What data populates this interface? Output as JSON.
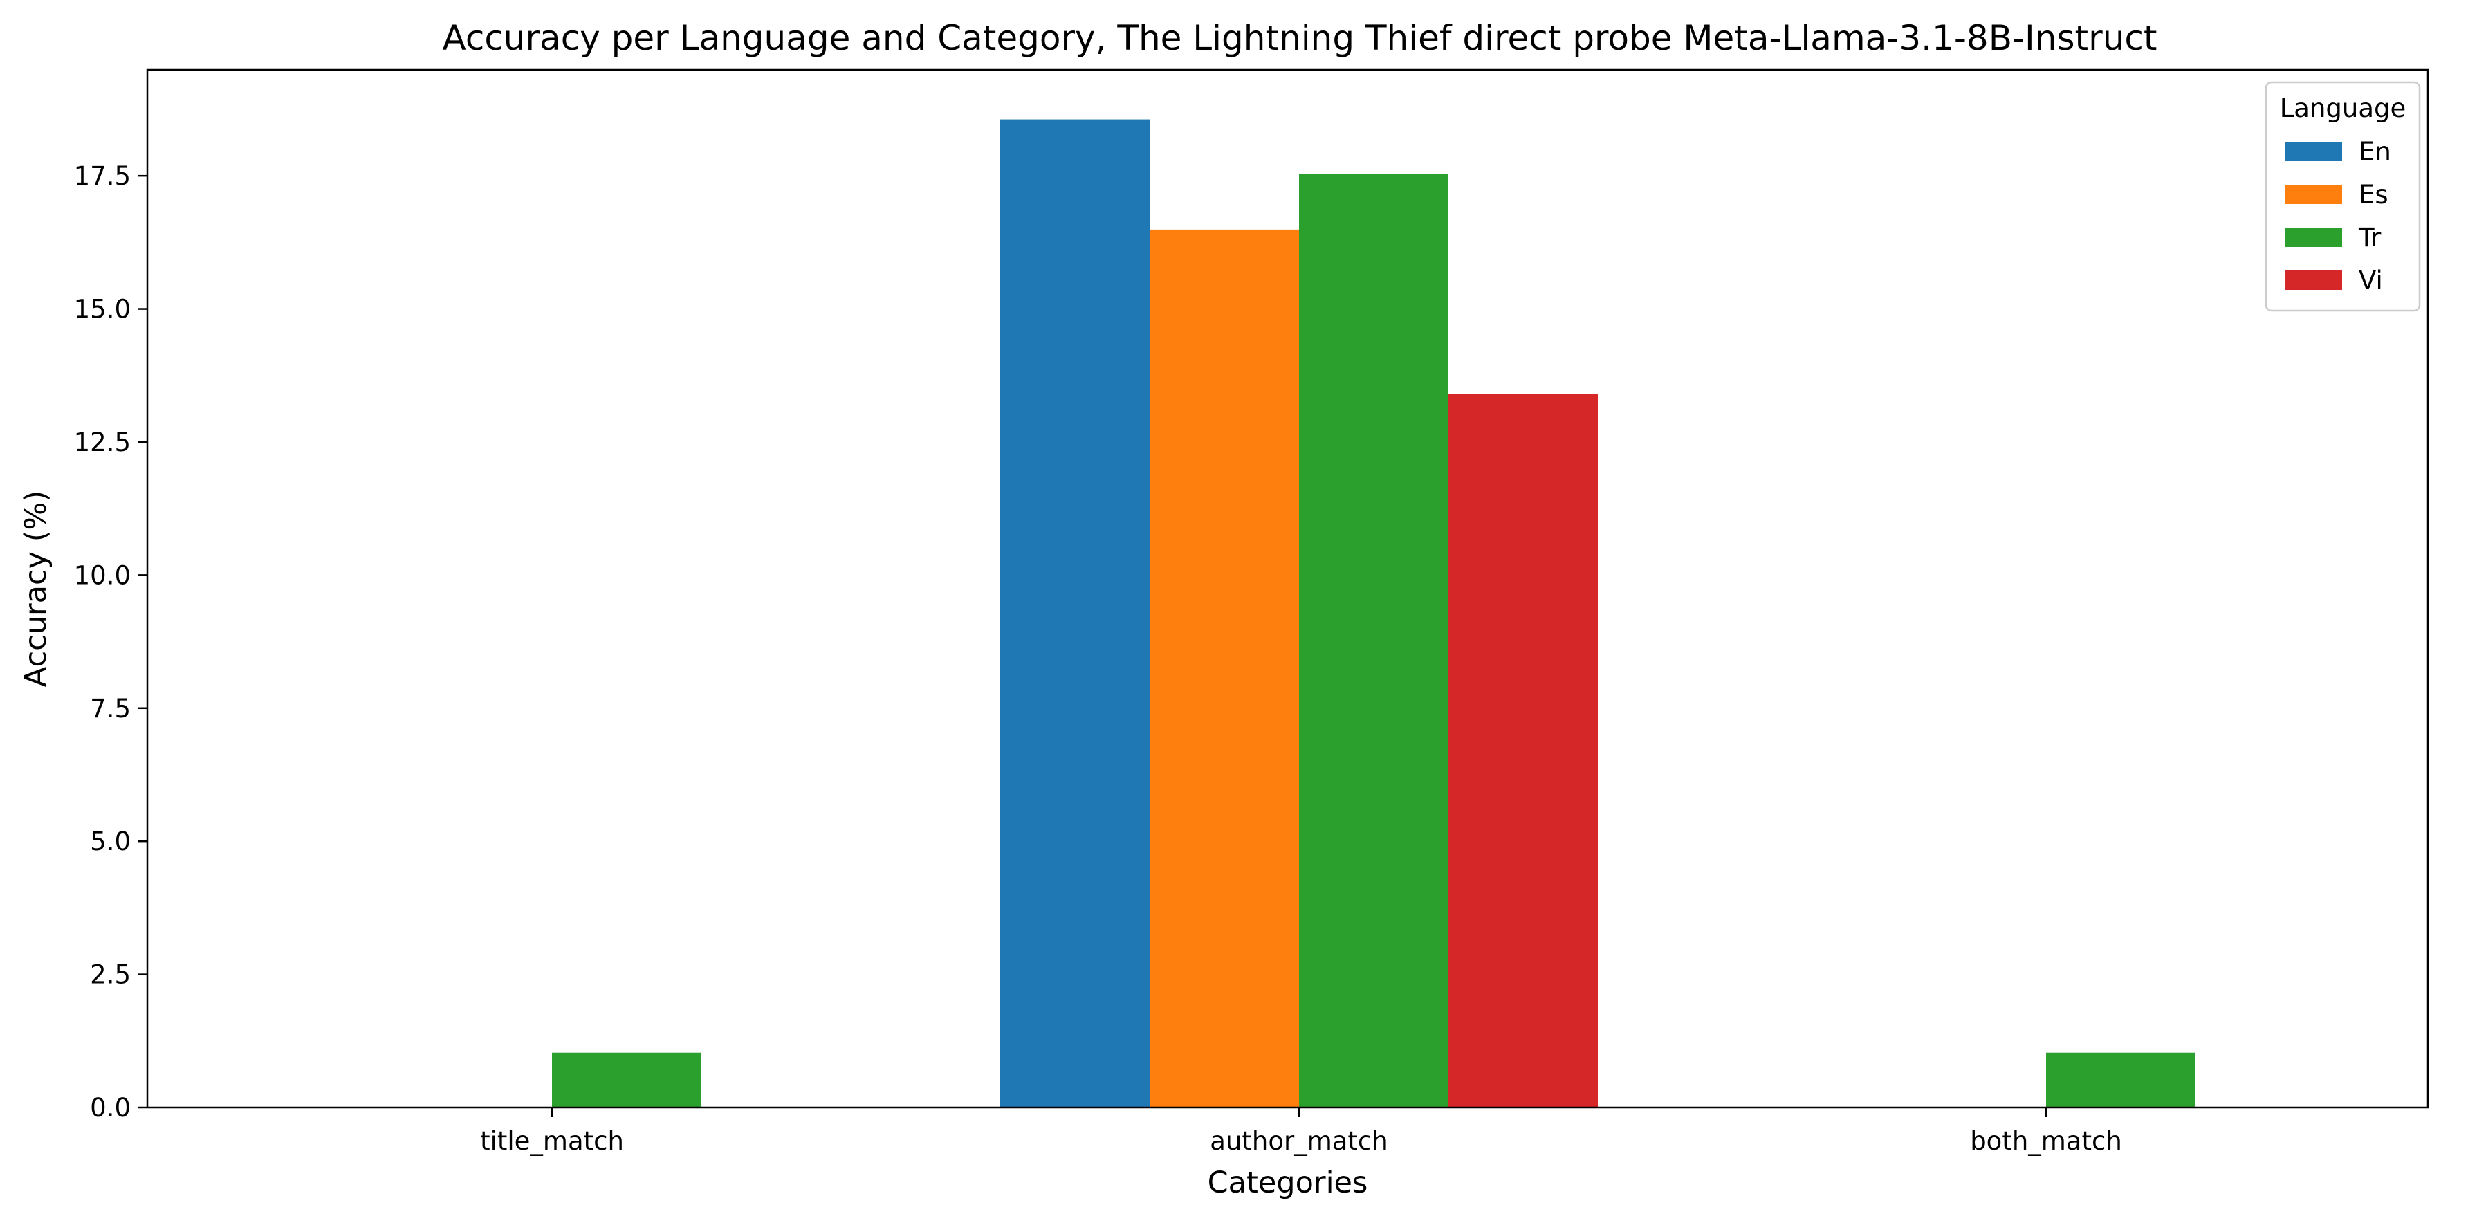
{
  "chart_data": {
    "type": "bar",
    "title": "Accuracy per Language and Category, The Lightning Thief direct probe Meta-Llama-3.1-8B-Instruct",
    "xlabel": "Categories",
    "ylabel": "Accuracy (%)",
    "categories": [
      "title_match",
      "author_match",
      "both_match"
    ],
    "series": [
      {
        "name": "En",
        "color": "#1f77b4",
        "values": [
          0.0,
          18.56,
          0.0
        ]
      },
      {
        "name": "Es",
        "color": "#ff7f0e",
        "values": [
          0.0,
          16.49,
          0.0
        ]
      },
      {
        "name": "Tr",
        "color": "#2ca02c",
        "values": [
          1.03,
          17.53,
          1.03
        ]
      },
      {
        "name": "Vi",
        "color": "#d62728",
        "values": [
          0.0,
          13.4,
          0.0
        ]
      }
    ],
    "ylim": [
      0,
      19.49
    ],
    "yticks": [
      0.0,
      2.5,
      5.0,
      7.5,
      10.0,
      12.5,
      15.0,
      17.5
    ],
    "ytick_labels": [
      "0.0",
      "2.5",
      "5.0",
      "7.5",
      "10.0",
      "12.5",
      "15.0",
      "17.5"
    ],
    "legend": {
      "title": "Language",
      "placement": "top-right"
    },
    "grid": false
  }
}
